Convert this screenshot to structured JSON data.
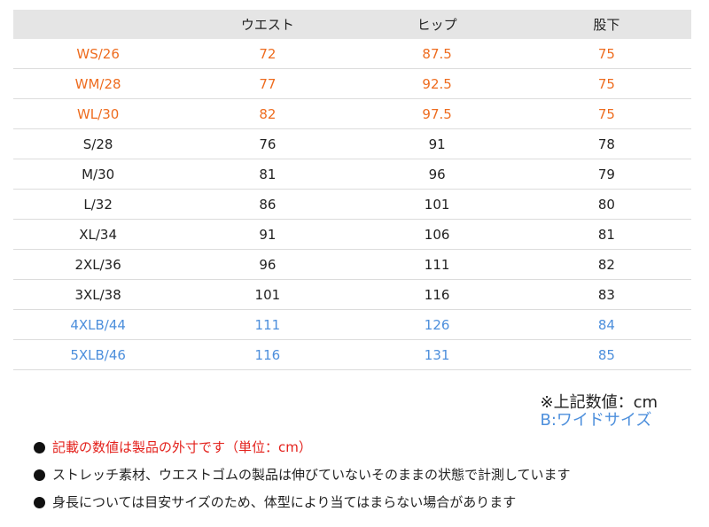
{
  "table": {
    "headers": [
      "",
      "ウエスト",
      "ヒップ",
      "股下"
    ],
    "rows": [
      {
        "group": "ws",
        "cells": [
          "WS/26",
          "72",
          "87.5",
          "75"
        ]
      },
      {
        "group": "ws",
        "cells": [
          "WM/28",
          "77",
          "92.5",
          "75"
        ]
      },
      {
        "group": "ws",
        "cells": [
          "WL/30",
          "82",
          "97.5",
          "75"
        ]
      },
      {
        "group": "std",
        "cells": [
          "S/28",
          "76",
          "91",
          "78"
        ]
      },
      {
        "group": "std",
        "cells": [
          "M/30",
          "81",
          "96",
          "79"
        ]
      },
      {
        "group": "std",
        "cells": [
          "L/32",
          "86",
          "101",
          "80"
        ]
      },
      {
        "group": "std",
        "cells": [
          "XL/34",
          "91",
          "106",
          "81"
        ]
      },
      {
        "group": "std",
        "cells": [
          "2XL/36",
          "96",
          "111",
          "82"
        ]
      },
      {
        "group": "std",
        "cells": [
          "3XL/38",
          "101",
          "116",
          "83"
        ]
      },
      {
        "group": "b",
        "cells": [
          "4XLB/44",
          "111",
          "126",
          "84"
        ]
      },
      {
        "group": "b",
        "cells": [
          "5XLB/46",
          "116",
          "131",
          "85"
        ]
      }
    ]
  },
  "unit_note": {
    "line1": "※上記数値：cm",
    "line2": "B:ワイドサイズ"
  },
  "notes": [
    {
      "style": "red",
      "text": "記載の数値は製品の外寸です（単位：cm）"
    },
    {
      "style": "dark",
      "text": "ストレッチ素材、ウエストゴムの製品は伸びていないそのままの状態で計測しています"
    },
    {
      "style": "dark",
      "text": "身長については目安サイズのため、体型により当てはまらない場合があります"
    }
  ],
  "colors": {
    "women_rows": "#ee6c1f",
    "wide_rows": "#4d8fdc",
    "header_bg": "#e5e5e5",
    "note_red": "#e3201b"
  }
}
